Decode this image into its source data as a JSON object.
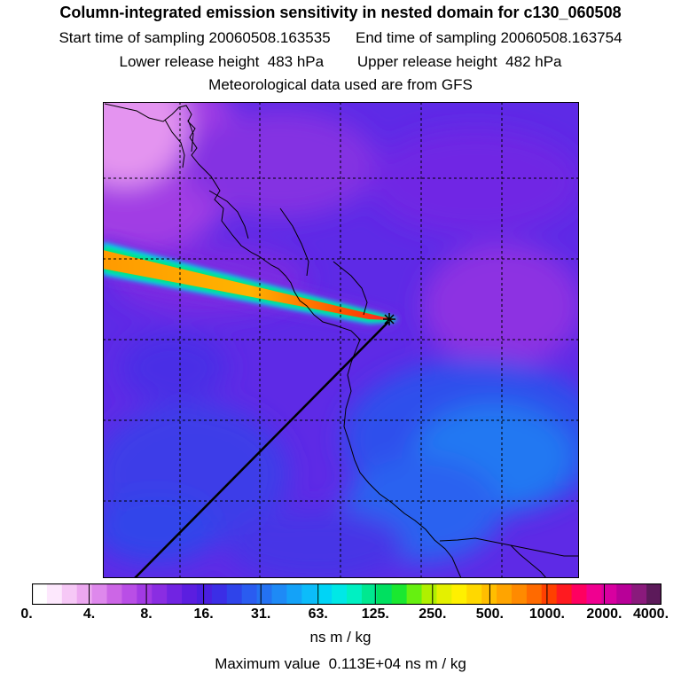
{
  "header": {
    "title": "Column-integrated emission sensitivity in nested domain for c130_060508",
    "line2": "Start time of sampling 20060508.163535      End time of sampling 20060508.163754",
    "line3": "Lower release height  483 hPa        Upper release height  482 hPa",
    "line4": "Meteorological data used are from GFS"
  },
  "colorbar": {
    "tick_labels": [
      "0.",
      "4.",
      "8.",
      "16.",
      "31.",
      "63.",
      "125.",
      "250.",
      "500.",
      "1000.",
      "2000.",
      "4000."
    ],
    "units": "ns m / kg",
    "colors": [
      "#ffffff",
      "#fde8fd",
      "#f6c8f6",
      "#eca8f0",
      "#de88ec",
      "#cc66e6",
      "#b94ee6",
      "#a23ae4",
      "#8a2de2",
      "#7124e2",
      "#5b1ee0",
      "#4a1fe0",
      "#3b2ee6",
      "#2f44ea",
      "#2a5cf0",
      "#2472f2",
      "#1e8af6",
      "#14a2f8",
      "#0cbcfa",
      "#00d4f6",
      "#00e8e6",
      "#00f0c2",
      "#00e890",
      "#00e060",
      "#1ae830",
      "#66f010",
      "#b0f000",
      "#e4f000",
      "#fff000",
      "#ffd800",
      "#ffbe00",
      "#ffa400",
      "#ff8a00",
      "#ff6a00",
      "#ff4000",
      "#ff1a20",
      "#ff0060",
      "#f00090",
      "#d800a0",
      "#b80098",
      "#8a1a7c",
      "#5c1a5a"
    ]
  },
  "maximum": "Maximum value  0.113E+04 ns m / kg",
  "map": {
    "receptor_marker": "star-marker",
    "background_color": "#6428e8"
  }
}
